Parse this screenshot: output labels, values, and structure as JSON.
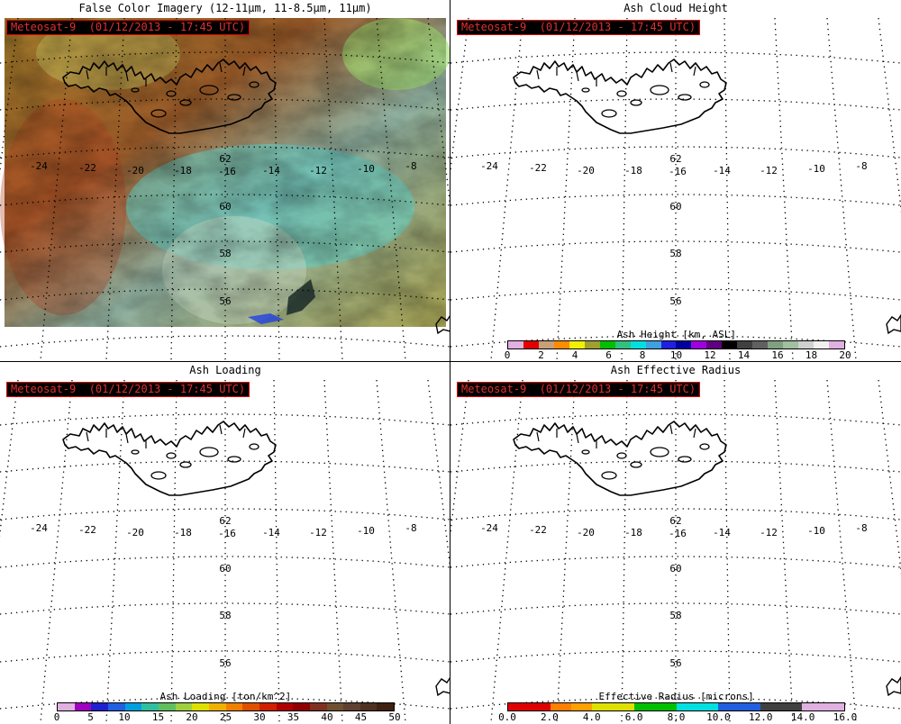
{
  "panels": {
    "false_color": {
      "title": "False Color Imagery (12-11µm, 11-8.5µm, 11µm)",
      "sat_label": "Meteosat-9  (01/12/2013 - 17:45 UTC)"
    },
    "ash_height": {
      "title": "Ash Cloud Height",
      "sat_label": "Meteosat-9  (01/12/2013 - 17:45 UTC)",
      "colorbar": {
        "title": "Ash Height [km, ASL]",
        "ticks": [
          "0",
          "2",
          "4",
          "6",
          "8",
          "10",
          "12",
          "14",
          "16",
          "18",
          "20"
        ],
        "colors": [
          "#e0b0e0",
          "#e00000",
          "#c8a078",
          "#ff8c00",
          "#f0f000",
          "#a0a030",
          "#00c000",
          "#30c080",
          "#00e0e0",
          "#40a0e0",
          "#2020e0",
          "#0000a0",
          "#a000e0",
          "#600080",
          "#000000",
          "#404040",
          "#606060",
          "#80a080",
          "#a0c0a0",
          "#d0d0d0",
          "#f0f0f0",
          "#e0b0e0"
        ]
      }
    },
    "ash_loading": {
      "title": "Ash Loading",
      "sat_label": "Meteosat-9  (01/12/2013 - 17:45 UTC)",
      "colorbar": {
        "title": "Ash Loading [ton/km^2]",
        "ticks": [
          "0",
          "5",
          "10",
          "15",
          "20",
          "25",
          "30",
          "35",
          "40",
          "45",
          "50"
        ],
        "colors": [
          "#e0b0e0",
          "#a000c0",
          "#2020d0",
          "#2060e0",
          "#00a0e0",
          "#30c0a0",
          "#60c060",
          "#a0d040",
          "#e0e000",
          "#f0b000",
          "#f08000",
          "#e05000",
          "#d02000",
          "#b00000",
          "#900000",
          "#803020",
          "#705030",
          "#604030",
          "#503020",
          "#402010"
        ]
      }
    },
    "effective_radius": {
      "title": "Ash Effective Radius",
      "sat_label": "Meteosat-9  (01/12/2013 - 17:45 UTC)",
      "colorbar": {
        "title": "Effective Radius [microns]",
        "ticks": [
          "0.0",
          "2.0",
          "4.0",
          "6.0",
          "8.0",
          "10.0",
          "12.0",
          "14.0",
          "16.0"
        ],
        "colors": [
          "#e00000",
          "#e00000",
          "#ff8000",
          "#ffa000",
          "#e0e000",
          "#e0e000",
          "#00c000",
          "#00c000",
          "#00e0e0",
          "#00e0e0",
          "#2060e0",
          "#2060e0",
          "#404040",
          "#404040",
          "#e0b0e0",
          "#e0b0e0"
        ]
      }
    }
  },
  "map": {
    "lon_labels": [
      "-24",
      "-22",
      "-20",
      "-18",
      "-16",
      "-14",
      "-12",
      "-10",
      "-8"
    ],
    "lat_labels": [
      "62",
      "60",
      "58",
      "56"
    ]
  }
}
